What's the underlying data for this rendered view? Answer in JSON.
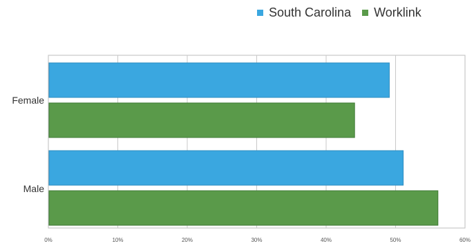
{
  "chart_data": {
    "type": "bar",
    "orientation": "horizontal",
    "categories": [
      "Female",
      "Male"
    ],
    "series": [
      {
        "name": "South Carolina",
        "color": "#3aa7e0",
        "values": [
          49,
          51
        ]
      },
      {
        "name": "Worklink",
        "color": "#5a9a4a",
        "values": [
          44,
          56
        ]
      }
    ],
    "xlim": [
      0,
      60
    ],
    "xticks": [
      "0%",
      "10%",
      "20%",
      "30%",
      "40%",
      "50%",
      "60%"
    ],
    "grid": true,
    "legend": "top-right",
    "title": "",
    "xlabel": "",
    "ylabel": ""
  }
}
